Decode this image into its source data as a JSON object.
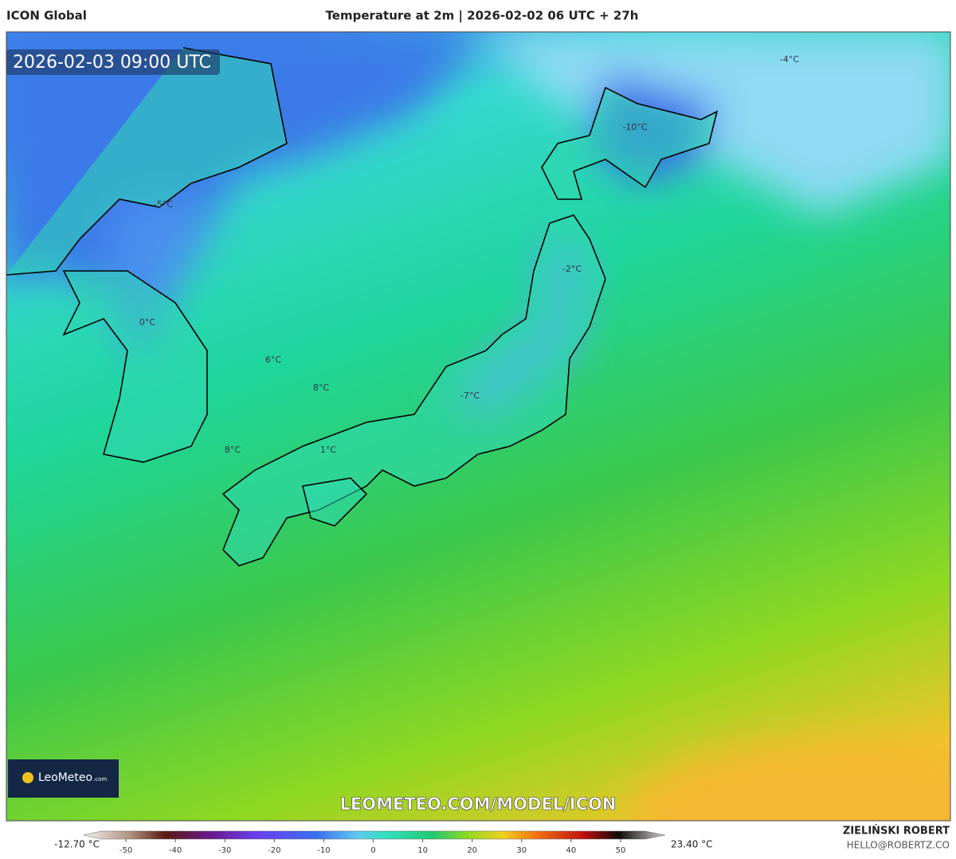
{
  "header": {
    "model": "ICON Global",
    "title": "Temperature at 2m | 2026-02-02 06 UTC + 27h"
  },
  "map": {
    "valid_time": "2026-02-03 09:00 UTC",
    "labels": [
      "-4°C",
      "-10°C",
      "-5°C",
      "-2°C",
      "0°C",
      "6°C",
      "8°C",
      "-7°C",
      "8°C",
      "1°C"
    ],
    "logo": "LeoMeteo",
    "logo_suffix": ".com",
    "watermark": "LEOMETEO.COM/MODEL/ICON"
  },
  "colorbar": {
    "min_label": "-12.70 °C",
    "max_label": "23.40 °C",
    "lim": [
      -55,
      55
    ],
    "ticks": [
      -50,
      -40,
      -30,
      -20,
      -10,
      0,
      10,
      20,
      30,
      40,
      50
    ]
  },
  "footer": {
    "author": "ZIELIŃSKI ROBERT",
    "email": "HELLO@ROBERTZ.CO"
  }
}
